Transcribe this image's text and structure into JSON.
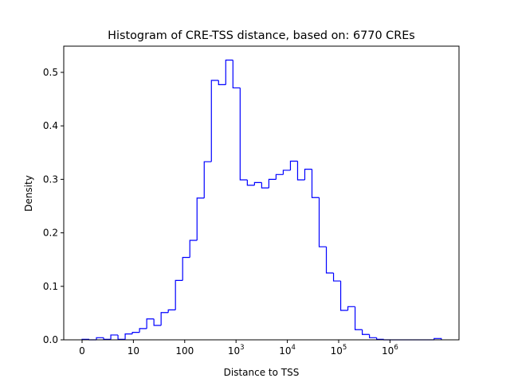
{
  "chart_data": {
    "type": "bar",
    "histtype": "step",
    "title": "Histogram of CRE-TSS distance, based on: 6770 CREs",
    "xlabel": "Distance to TSS",
    "ylabel": "Density",
    "x_scale": "log10(x+1)",
    "bin_range_log10": [
      0,
      7
    ],
    "bin_count": 50,
    "densities": [
      0.001,
      0.0,
      0.004,
      0.001,
      0.009,
      0.001,
      0.011,
      0.014,
      0.021,
      0.039,
      0.027,
      0.051,
      0.056,
      0.111,
      0.154,
      0.186,
      0.265,
      0.333,
      0.485,
      0.477,
      0.523,
      0.471,
      0.299,
      0.289,
      0.294,
      0.284,
      0.3,
      0.309,
      0.317,
      0.334,
      0.299,
      0.319,
      0.266,
      0.174,
      0.125,
      0.11,
      0.055,
      0.062,
      0.019,
      0.01,
      0.004,
      0.001,
      0,
      0,
      0,
      0,
      0,
      0,
      0,
      0.0025
    ],
    "ylim": [
      0,
      0.549
    ],
    "xlim_log10": [
      -0.357,
      7.345
    ],
    "yticks": [
      {
        "value": 0.0,
        "label": "0.0"
      },
      {
        "value": 0.1,
        "label": "0.1"
      },
      {
        "value": 0.2,
        "label": "0.2"
      },
      {
        "value": 0.3,
        "label": "0.3"
      },
      {
        "value": 0.4,
        "label": "0.4"
      },
      {
        "value": 0.5,
        "label": "0.5"
      }
    ],
    "xticks": [
      {
        "pos": 0,
        "base": "0",
        "exp": ""
      },
      {
        "pos": 1,
        "base": "10",
        "exp": ""
      },
      {
        "pos": 2,
        "base": "100",
        "exp": ""
      },
      {
        "pos": 3,
        "base": "10",
        "exp": "3"
      },
      {
        "pos": 4,
        "base": "10",
        "exp": "4"
      },
      {
        "pos": 5,
        "base": "10",
        "exp": "5"
      },
      {
        "pos": 6,
        "base": "10",
        "exp": "6"
      }
    ],
    "line_color": "#0000ff",
    "grid": false,
    "legend": "none"
  }
}
